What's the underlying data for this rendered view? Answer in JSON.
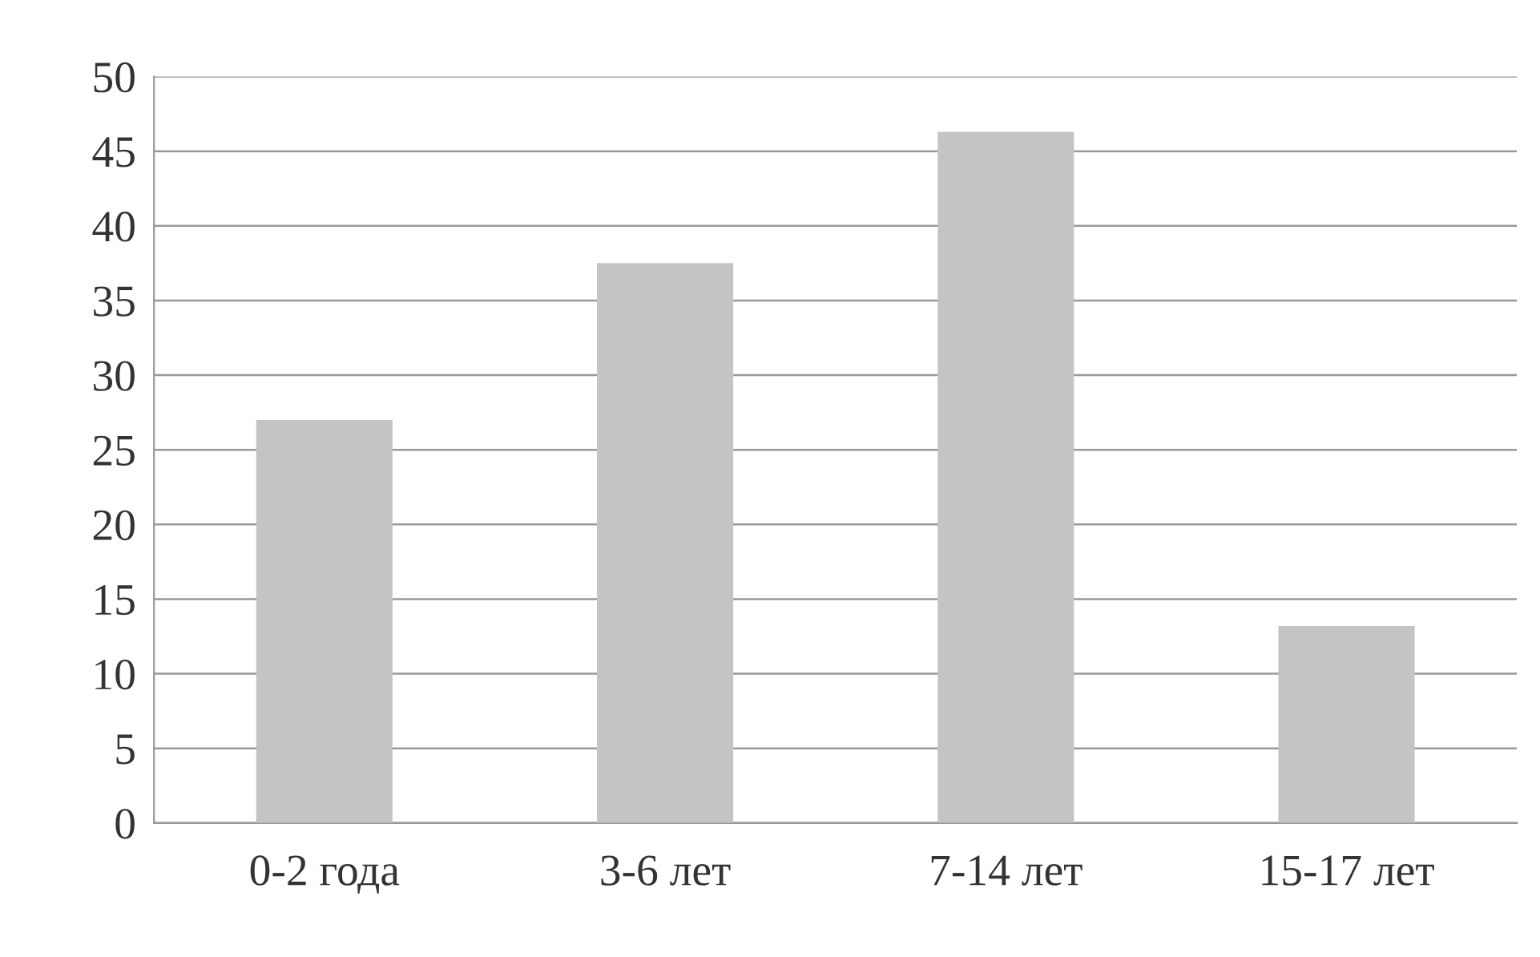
{
  "chart_data": {
    "type": "bar",
    "categories": [
      "0-2 года",
      "3-6 лет",
      "7-14 лет",
      "15-17 лет"
    ],
    "values": [
      27,
      37.5,
      46.3,
      13.2
    ],
    "color": "#c4c4c4",
    "ylim": [
      0,
      50
    ],
    "yticks": [
      0,
      5,
      10,
      15,
      20,
      25,
      30,
      35,
      40,
      45,
      50
    ],
    "grid": "y"
  }
}
